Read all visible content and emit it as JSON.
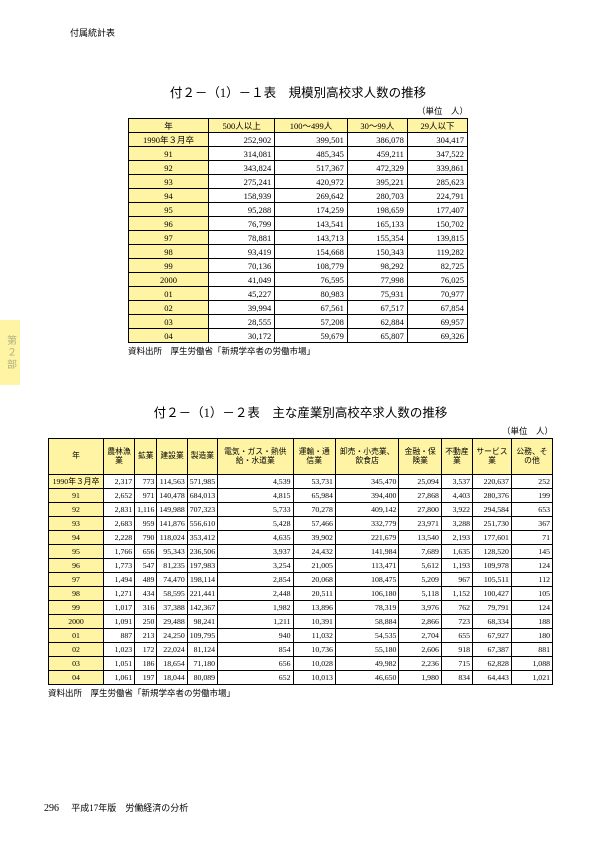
{
  "header": {
    "text": "付属統計表"
  },
  "side_tab": {
    "label": "第２部"
  },
  "footer": {
    "page": "296",
    "text": "平成17年版　労働経済の分析"
  },
  "table1": {
    "title": "付２－（1）－１表　規模別高校求人数の推移",
    "unit": "（単位　人）",
    "source": "資料出所　厚生労働省「新規学卒者の労働市場」",
    "columns": [
      "年",
      "500人以上",
      "100～499人",
      "30～99人",
      "29人以下"
    ],
    "rows": [
      [
        "1990年３月卒",
        "252,902",
        "399,501",
        "386,078",
        "304,417"
      ],
      [
        "91",
        "314,081",
        "485,345",
        "459,211",
        "347,522"
      ],
      [
        "92",
        "343,824",
        "517,367",
        "472,329",
        "339,861"
      ],
      [
        "93",
        "275,241",
        "420,972",
        "395,221",
        "285,623"
      ],
      [
        "94",
        "158,939",
        "269,642",
        "280,703",
        "224,791"
      ],
      [
        "95",
        "95,288",
        "174,259",
        "198,659",
        "177,407"
      ],
      [
        "96",
        "76,799",
        "143,541",
        "165,133",
        "150,702"
      ],
      [
        "97",
        "78,881",
        "143,713",
        "155,354",
        "139,815"
      ],
      [
        "98",
        "93,419",
        "154,668",
        "150,343",
        "119,282"
      ],
      [
        "99",
        "70,136",
        "108,779",
        "98,292",
        "82,725"
      ],
      [
        "2000",
        "41,049",
        "76,595",
        "77,998",
        "76,025"
      ],
      [
        "01",
        "45,227",
        "80,983",
        "75,931",
        "70,977"
      ],
      [
        "02",
        "39,994",
        "67,561",
        "67,517",
        "67,854"
      ],
      [
        "03",
        "28,555",
        "57,208",
        "62,884",
        "69,957"
      ],
      [
        "04",
        "30,172",
        "59,679",
        "65,807",
        "69,326"
      ]
    ]
  },
  "table2": {
    "title": "付２－（1）－２表　主な産業別高校卒求人数の推移",
    "unit": "（単位　人）",
    "source": "資料出所　厚生労働省「新規学卒者の労働市場」",
    "columns": [
      "年",
      "農林漁業",
      "鉱業",
      "建設業",
      "製造業",
      "電気・ガス・熱供給・水道業",
      "運輸・通信業",
      "卸売・小売業、飲食店",
      "金融・保険業",
      "不動産業",
      "サービス業",
      "公務、その他"
    ],
    "rows": [
      [
        "1990年３月卒",
        "2,317",
        "773",
        "114,563",
        "571,985",
        "4,539",
        "53,731",
        "345,470",
        "25,094",
        "3,537",
        "220,637",
        "252"
      ],
      [
        "91",
        "2,652",
        "971",
        "140,478",
        "684,013",
        "4,815",
        "65,984",
        "394,400",
        "27,868",
        "4,403",
        "280,376",
        "199"
      ],
      [
        "92",
        "2,831",
        "1,116",
        "149,988",
        "707,323",
        "5,733",
        "70,278",
        "409,142",
        "27,800",
        "3,922",
        "294,584",
        "653"
      ],
      [
        "93",
        "2,683",
        "959",
        "141,876",
        "556,610",
        "5,428",
        "57,466",
        "332,779",
        "23,971",
        "3,288",
        "251,730",
        "367"
      ],
      [
        "94",
        "2,228",
        "790",
        "118,024",
        "353,412",
        "4,635",
        "39,902",
        "221,679",
        "13,540",
        "2,193",
        "177,601",
        "71"
      ],
      [
        "95",
        "1,766",
        "656",
        "95,343",
        "236,506",
        "3,937",
        "24,432",
        "141,984",
        "7,689",
        "1,635",
        "128,520",
        "145"
      ],
      [
        "96",
        "1,773",
        "547",
        "81,235",
        "197,983",
        "3,254",
        "21,005",
        "113,471",
        "5,612",
        "1,193",
        "109,978",
        "124"
      ],
      [
        "97",
        "1,494",
        "489",
        "74,470",
        "198,114",
        "2,854",
        "20,068",
        "108,475",
        "5,209",
        "967",
        "105,511",
        "112"
      ],
      [
        "98",
        "1,271",
        "434",
        "58,595",
        "221,441",
        "2,448",
        "20,511",
        "106,180",
        "5,118",
        "1,152",
        "100,427",
        "105"
      ],
      [
        "99",
        "1,017",
        "316",
        "37,388",
        "142,367",
        "1,982",
        "13,896",
        "78,319",
        "3,976",
        "762",
        "79,791",
        "124"
      ],
      [
        "2000",
        "1,091",
        "250",
        "29,488",
        "98,241",
        "1,211",
        "10,391",
        "58,884",
        "2,866",
        "723",
        "68,334",
        "188"
      ],
      [
        "01",
        "887",
        "213",
        "24,250",
        "109,795",
        "940",
        "11,032",
        "54,535",
        "2,704",
        "655",
        "67,927",
        "180"
      ],
      [
        "02",
        "1,023",
        "172",
        "22,024",
        "81,124",
        "854",
        "10,736",
        "55,180",
        "2,606",
        "918",
        "67,387",
        "881"
      ],
      [
        "03",
        "1,051",
        "186",
        "18,654",
        "71,180",
        "656",
        "10,028",
        "49,982",
        "2,236",
        "715",
        "62,828",
        "1,088"
      ],
      [
        "04",
        "1,061",
        "197",
        "18,044",
        "80,089",
        "652",
        "10,013",
        "46,650",
        "1,980",
        "834",
        "64,443",
        "1,021"
      ]
    ]
  }
}
